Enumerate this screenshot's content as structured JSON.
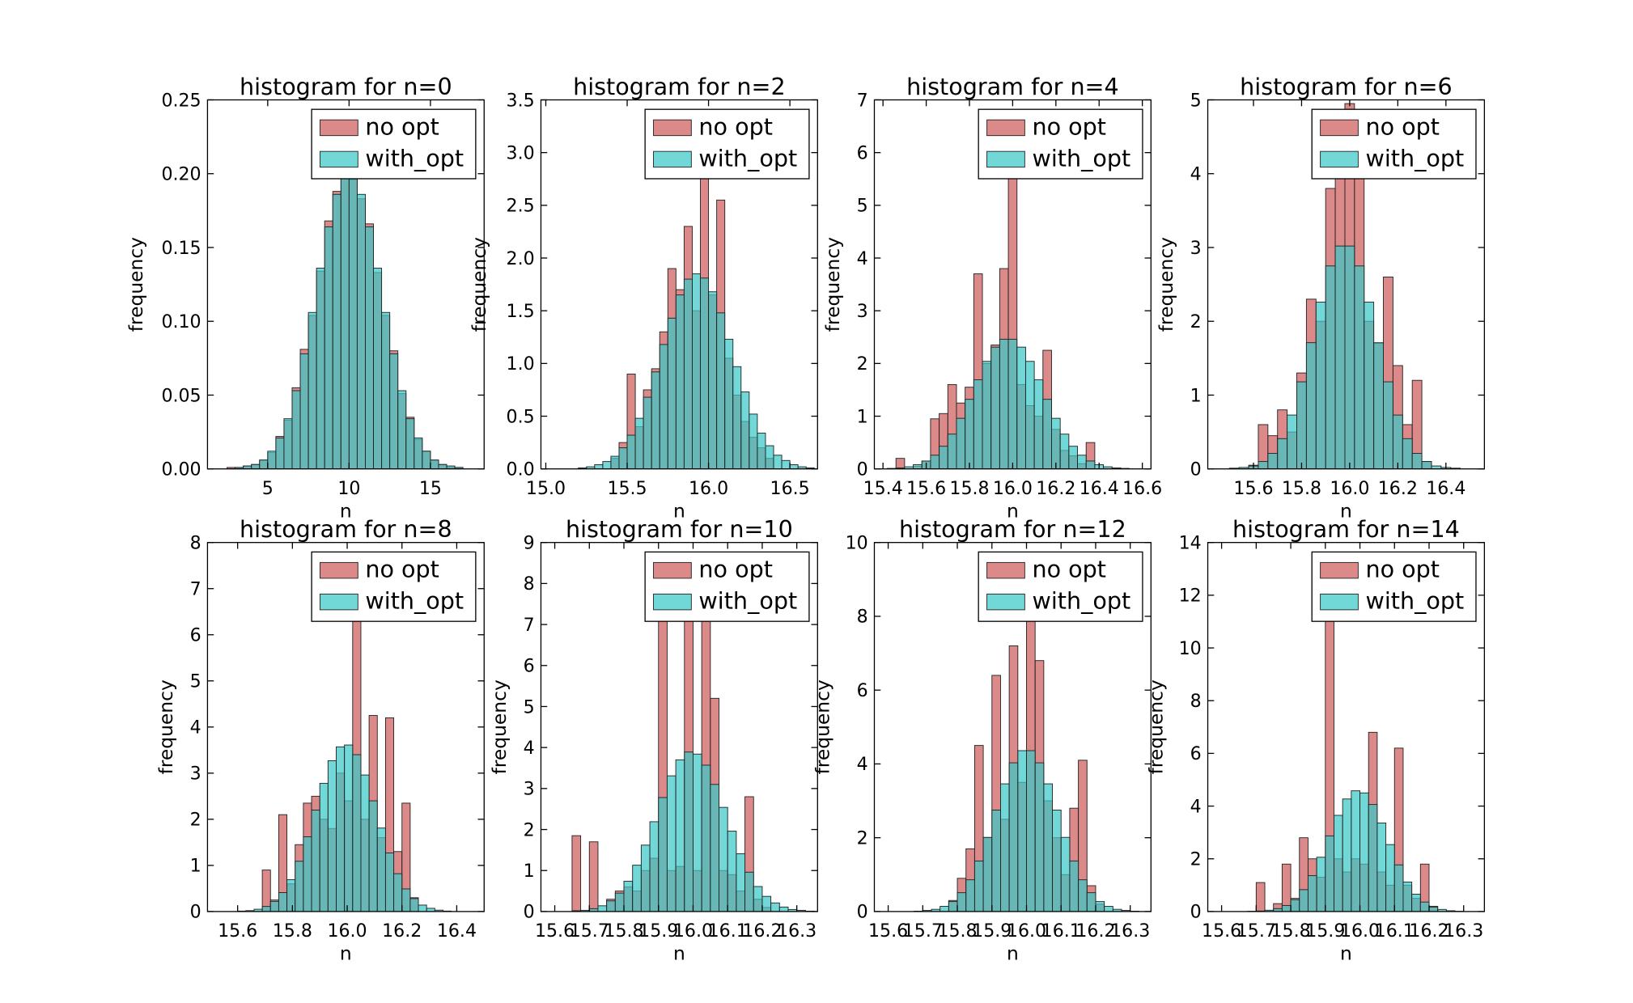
{
  "chart_data": [
    {
      "type": "histogram",
      "title": "histogram for n=0",
      "x_label": "n",
      "y_label": "frequency",
      "legend": "upper right",
      "bins": [
        2,
        2.5,
        3,
        3.5,
        4,
        4.5,
        5,
        5.5,
        6,
        6.5,
        7,
        7.5,
        8,
        8.5,
        9,
        9.5,
        10,
        10.5,
        11,
        11.5,
        12,
        12.5,
        13,
        13.5,
        14,
        14.5,
        15,
        15.5,
        16,
        16.5,
        17,
        17.5,
        18
      ],
      "series": [
        {
          "name": "no opt",
          "color": "#cd5c5c",
          "values": [
            0,
            0.001,
            0.001,
            0.002,
            0.003,
            0.006,
            0.011,
            0.022,
            0.033,
            0.055,
            0.081,
            0.104,
            0.134,
            0.168,
            0.188,
            0.203,
            0.196,
            0.183,
            0.166,
            0.133,
            0.104,
            0.08,
            0.051,
            0.035,
            0.02,
            0.012,
            0.006,
            0.003,
            0.001,
            0.001,
            0,
            0
          ]
        },
        {
          "name": "with_opt",
          "color": "#3cc8c8",
          "values": [
            0,
            0,
            0.001,
            0.002,
            0.003,
            0.006,
            0.012,
            0.021,
            0.034,
            0.053,
            0.078,
            0.106,
            0.136,
            0.164,
            0.186,
            0.198,
            0.198,
            0.186,
            0.164,
            0.136,
            0.106,
            0.078,
            0.053,
            0.034,
            0.021,
            0.012,
            0.006,
            0.003,
            0.002,
            0.001,
            0,
            0
          ]
        }
      ],
      "xlim": [
        1.3,
        18.3
      ],
      "xticks": [
        5,
        10,
        15
      ],
      "ylim": [
        0,
        0.25
      ],
      "yticks": [
        {
          "value": 0,
          "label": "0.00"
        },
        0.05,
        {
          "value": 0.1,
          "label": "0.10"
        },
        0.15,
        {
          "value": 0.2,
          "label": "0.20"
        },
        0.25
      ]
    },
    {
      "type": "histogram",
      "title": "histogram for n=2",
      "x_label": "n",
      "y_label": "frequency",
      "legend": "upper right",
      "bins": [
        15.1,
        15.15,
        15.2,
        15.25,
        15.3,
        15.35,
        15.4,
        15.45,
        15.5,
        15.55,
        15.6,
        15.65,
        15.7,
        15.75,
        15.8,
        15.85,
        15.9,
        15.95,
        16,
        16.05,
        16.1,
        16.15,
        16.2,
        16.25,
        16.3,
        16.35,
        16.4,
        16.45,
        16.5,
        16.55,
        16.6,
        16.65
      ],
      "series": [
        {
          "name": "no opt",
          "color": "#cd5c5c",
          "values": [
            0,
            0,
            0,
            0,
            0,
            0,
            0.1,
            0.25,
            0.9,
            0.4,
            0.75,
            0.95,
            1.3,
            1.9,
            1.7,
            2.3,
            1.5,
            2.8,
            1.65,
            2.55,
            1.05,
            0.7,
            0.45,
            0.3,
            0.2,
            0.1,
            0,
            0,
            0,
            0,
            0
          ]
        },
        {
          "name": "with_opt",
          "color": "#3cc8c8",
          "values": [
            0,
            0,
            0.01,
            0.02,
            0.04,
            0.07,
            0.12,
            0.2,
            0.32,
            0.48,
            0.68,
            0.92,
            1.18,
            1.43,
            1.65,
            1.8,
            1.85,
            1.81,
            1.68,
            1.48,
            1.23,
            0.97,
            0.73,
            0.52,
            0.34,
            0.22,
            0.13,
            0.08,
            0.04,
            0.02,
            0.01
          ]
        }
      ],
      "xlim": [
        14.97,
        16.67
      ],
      "xticks": [
        {
          "value": 15,
          "label": "15.0"
        },
        15.5,
        {
          "value": 16,
          "label": "16.0"
        },
        16.5
      ],
      "ylim": [
        0,
        3.5
      ],
      "yticks": [
        {
          "value": 0,
          "label": "0.0"
        },
        0.5,
        {
          "value": 1,
          "label": "1.0"
        },
        1.5,
        {
          "value": 2,
          "label": "2.0"
        },
        2.5,
        {
          "value": 3,
          "label": "3.0"
        },
        3.5
      ]
    },
    {
      "type": "histogram",
      "title": "histogram for n=4",
      "x_label": "n",
      "y_label": "frequency",
      "legend": "upper right",
      "bins": [
        15.42,
        15.46,
        15.5,
        15.54,
        15.58,
        15.62,
        15.66,
        15.7,
        15.74,
        15.78,
        15.82,
        15.86,
        15.9,
        15.94,
        15.98,
        16.02,
        16.06,
        16.1,
        16.14,
        16.18,
        16.22,
        16.26,
        16.3,
        16.34,
        16.38,
        16.42,
        16.46,
        16.5,
        16.54
      ],
      "series": [
        {
          "name": "no opt",
          "color": "#cd5c5c",
          "values": [
            0,
            0.2,
            0,
            0.05,
            0.15,
            0.95,
            1.05,
            1.6,
            1.25,
            1.55,
            3.7,
            2.0,
            2.35,
            3.8,
            5.6,
            1.6,
            1.2,
            1.0,
            2.25,
            0.75,
            0.35,
            0.25,
            0.1,
            0.5,
            0,
            0,
            0,
            0
          ]
        },
        {
          "name": "with_opt",
          "color": "#3cc8c8",
          "values": [
            0.01,
            0.02,
            0.04,
            0.08,
            0.15,
            0.26,
            0.43,
            0.66,
            0.96,
            1.32,
            1.69,
            2.04,
            2.31,
            2.46,
            2.46,
            2.31,
            2.04,
            1.69,
            1.32,
            0.96,
            0.66,
            0.43,
            0.26,
            0.15,
            0.08,
            0.04,
            0.02,
            0.01
          ]
        }
      ],
      "xlim": [
        15.36,
        16.64
      ],
      "xticks": [
        15.4,
        15.6,
        15.8,
        {
          "value": 16,
          "label": "16.0"
        },
        16.2,
        16.4,
        16.6
      ],
      "ylim": [
        0,
        7
      ],
      "yticks": [
        0,
        1,
        2,
        3,
        4,
        5,
        6,
        7
      ]
    },
    {
      "type": "histogram",
      "title": "histogram for n=6",
      "x_label": "n",
      "y_label": "frequency",
      "legend": "upper right",
      "bins": [
        15.42,
        15.46,
        15.5,
        15.54,
        15.58,
        15.62,
        15.66,
        15.7,
        15.74,
        15.78,
        15.82,
        15.86,
        15.9,
        15.94,
        15.98,
        16.02,
        16.06,
        16.1,
        16.14,
        16.18,
        16.22,
        16.26,
        16.3,
        16.34,
        16.38,
        16.42,
        16.46,
        16.5
      ],
      "series": [
        {
          "name": "no opt",
          "color": "#cd5c5c",
          "values": [
            0,
            0,
            0,
            0,
            0.05,
            0.6,
            0.45,
            0.8,
            0.5,
            1.3,
            2.3,
            2.0,
            3.8,
            4.0,
            4.95,
            4.0,
            2.0,
            1.7,
            2.6,
            1.4,
            0.6,
            1.2,
            0.1,
            0,
            0,
            0,
            0
          ]
        },
        {
          "name": "with_opt",
          "color": "#3cc8c8",
          "values": [
            0,
            0,
            0.01,
            0.02,
            0.04,
            0.1,
            0.21,
            0.41,
            0.73,
            1.18,
            1.71,
            2.26,
            2.75,
            3.02,
            3.02,
            2.75,
            2.26,
            1.71,
            1.18,
            0.73,
            0.41,
            0.21,
            0.1,
            0.04,
            0.02,
            0.01,
            0
          ]
        }
      ],
      "xlim": [
        15.41,
        16.56
      ],
      "xticks": [
        15.6,
        15.8,
        {
          "value": 16,
          "label": "16.0"
        },
        16.2,
        16.4
      ],
      "ylim": [
        0,
        5
      ],
      "yticks": [
        0,
        1,
        2,
        3,
        4,
        5
      ]
    },
    {
      "type": "histogram",
      "title": "histogram for n=8",
      "x_label": "n",
      "y_label": "frequency",
      "legend": "upper right",
      "bins": [
        15.6,
        15.63,
        15.66,
        15.69,
        15.72,
        15.75,
        15.78,
        15.81,
        15.84,
        15.87,
        15.9,
        15.93,
        15.96,
        15.99,
        16.02,
        16.05,
        16.08,
        16.11,
        16.14,
        16.17,
        16.2,
        16.23,
        16.26,
        16.29,
        16.32,
        16.35,
        16.38
      ],
      "series": [
        {
          "name": "no opt",
          "color": "#cd5c5c",
          "values": [
            0,
            0,
            0,
            0.9,
            0.25,
            2.1,
            0.6,
            1.45,
            2.35,
            2.5,
            2.0,
            1.8,
            3.0,
            2.4,
            6.3,
            2.0,
            4.25,
            1.6,
            4.2,
            1.3,
            2.35,
            0.3,
            0,
            0,
            0,
            0
          ]
        },
        {
          "name": "with_opt",
          "color": "#3cc8c8",
          "values": [
            0.01,
            0.02,
            0.05,
            0.11,
            0.22,
            0.41,
            0.69,
            1.09,
            1.62,
            2.2,
            2.78,
            3.27,
            3.57,
            3.61,
            3.4,
            2.96,
            2.4,
            1.81,
            1.27,
            0.82,
            0.49,
            0.28,
            0.14,
            0.07,
            0.03,
            0.01
          ]
        }
      ],
      "xlim": [
        15.49,
        16.5
      ],
      "xticks": [
        15.6,
        15.8,
        {
          "value": 16,
          "label": "16.0"
        },
        16.2,
        16.4
      ],
      "ylim": [
        0,
        8
      ],
      "yticks": [
        0,
        1,
        2,
        3,
        4,
        5,
        6,
        7,
        8
      ]
    },
    {
      "type": "histogram",
      "title": "histogram for n=10",
      "x_label": "n",
      "y_label": "frequency",
      "legend": "upper right",
      "bins": [
        15.65,
        15.675,
        15.7,
        15.725,
        15.75,
        15.775,
        15.8,
        15.825,
        15.85,
        15.875,
        15.9,
        15.925,
        15.95,
        15.975,
        16,
        16.025,
        16.05,
        16.075,
        16.1,
        16.125,
        16.15,
        16.175,
        16.2,
        16.225,
        16.25,
        16.275,
        16.3,
        16.325,
        16.35
      ],
      "series": [
        {
          "name": "no opt",
          "color": "#cd5c5c",
          "values": [
            1.85,
            0,
            1.7,
            0,
            0.3,
            0.5,
            0.6,
            0.5,
            1.0,
            1.3,
            8.5,
            1.0,
            1.1,
            8.5,
            1.0,
            8.5,
            5.2,
            1.0,
            0.9,
            0.5,
            2.8,
            0.3,
            0.1,
            0,
            0,
            0,
            0,
            0
          ]
        },
        {
          "name": "with_opt",
          "color": "#3cc8c8",
          "values": [
            0.02,
            0.03,
            0.07,
            0.14,
            0.26,
            0.45,
            0.74,
            1.13,
            1.62,
            2.19,
            2.78,
            3.31,
            3.7,
            3.89,
            3.84,
            3.57,
            3.1,
            2.54,
            1.96,
            1.41,
            0.96,
            0.61,
            0.37,
            0.21,
            0.11,
            0.05,
            0.03,
            0.01
          ]
        }
      ],
      "xlim": [
        15.56,
        16.36
      ],
      "xticks": [
        15.6,
        15.7,
        15.8,
        15.9,
        {
          "value": 16,
          "label": "16.0"
        },
        16.1,
        16.2,
        16.3
      ],
      "ylim": [
        0,
        9
      ],
      "yticks": [
        0,
        1,
        2,
        3,
        4,
        5,
        6,
        7,
        8,
        9
      ]
    },
    {
      "type": "histogram",
      "title": "histogram for n=12",
      "x_label": "n",
      "y_label": "frequency",
      "legend": "upper right",
      "bins": [
        15.65,
        15.675,
        15.7,
        15.725,
        15.75,
        15.775,
        15.8,
        15.825,
        15.85,
        15.875,
        15.9,
        15.925,
        15.95,
        15.975,
        16,
        16.025,
        16.05,
        16.075,
        16.1,
        16.125,
        16.15,
        16.175,
        16.2,
        16.225,
        16.25,
        16.275,
        16.3,
        16.325,
        16.35
      ],
      "series": [
        {
          "name": "no opt",
          "color": "#cd5c5c",
          "values": [
            0,
            0,
            0,
            0,
            0,
            0.3,
            0.9,
            1.7,
            4.5,
            2.0,
            6.4,
            2.5,
            7.2,
            3.5,
            8.2,
            6.8,
            3.0,
            2.0,
            1.0,
            2.8,
            4.1,
            0.7,
            0.2,
            0,
            0,
            0,
            0,
            0
          ]
        },
        {
          "name": "with_opt",
          "color": "#3cc8c8",
          "values": [
            0,
            0.01,
            0.03,
            0.06,
            0.14,
            0.27,
            0.51,
            0.86,
            1.37,
            2.01,
            2.75,
            3.46,
            4.03,
            4.36,
            4.36,
            4.03,
            3.46,
            2.75,
            2.01,
            1.37,
            0.86,
            0.51,
            0.27,
            0.14,
            0.06,
            0.03,
            0.01,
            0
          ]
        }
      ],
      "xlim": [
        15.56,
        16.36
      ],
      "xticks": [
        15.6,
        15.7,
        15.8,
        15.9,
        {
          "value": 16,
          "label": "16.0"
        },
        16.1,
        16.2,
        16.3
      ],
      "ylim": [
        0,
        10
      ],
      "yticks": [
        0,
        2,
        4,
        6,
        8,
        10
      ]
    },
    {
      "type": "histogram",
      "title": "histogram for n=14",
      "x_label": "n",
      "y_label": "frequency",
      "legend": "upper right",
      "bins": [
        15.65,
        15.675,
        15.7,
        15.725,
        15.75,
        15.775,
        15.8,
        15.825,
        15.85,
        15.875,
        15.9,
        15.925,
        15.95,
        15.975,
        16,
        16.025,
        16.05,
        16.075,
        16.1,
        16.125,
        16.15,
        16.175,
        16.2,
        16.225,
        16.25,
        16.275,
        16.3,
        16.325,
        16.35
      ],
      "series": [
        {
          "name": "no opt",
          "color": "#cd5c5c",
          "values": [
            0,
            0,
            1.1,
            0,
            0.3,
            1.8,
            0.5,
            2.8,
            2.0,
            1.3,
            11.5,
            2.0,
            1.5,
            2.0,
            1.8,
            6.8,
            1.5,
            1.0,
            6.2,
            1.0,
            0.5,
            1.8,
            0.2,
            0,
            0,
            0,
            0,
            0
          ]
        },
        {
          "name": "with_opt",
          "color": "#3cc8c8",
          "values": [
            0,
            0.01,
            0.02,
            0.05,
            0.11,
            0.23,
            0.45,
            0.83,
            1.36,
            2.06,
            2.87,
            3.65,
            4.27,
            4.58,
            4.5,
            4.06,
            3.36,
            2.54,
            1.77,
            1.12,
            0.66,
            0.36,
            0.17,
            0.08,
            0.03,
            0.01,
            0,
            0
          ]
        }
      ],
      "xlim": [
        15.56,
        16.36
      ],
      "xticks": [
        15.6,
        15.7,
        15.8,
        15.9,
        {
          "value": 16,
          "label": "16.0"
        },
        16.1,
        16.2,
        16.3
      ],
      "ylim": [
        0,
        14
      ],
      "yticks": [
        0,
        2,
        4,
        6,
        8,
        10,
        12,
        14
      ]
    }
  ]
}
